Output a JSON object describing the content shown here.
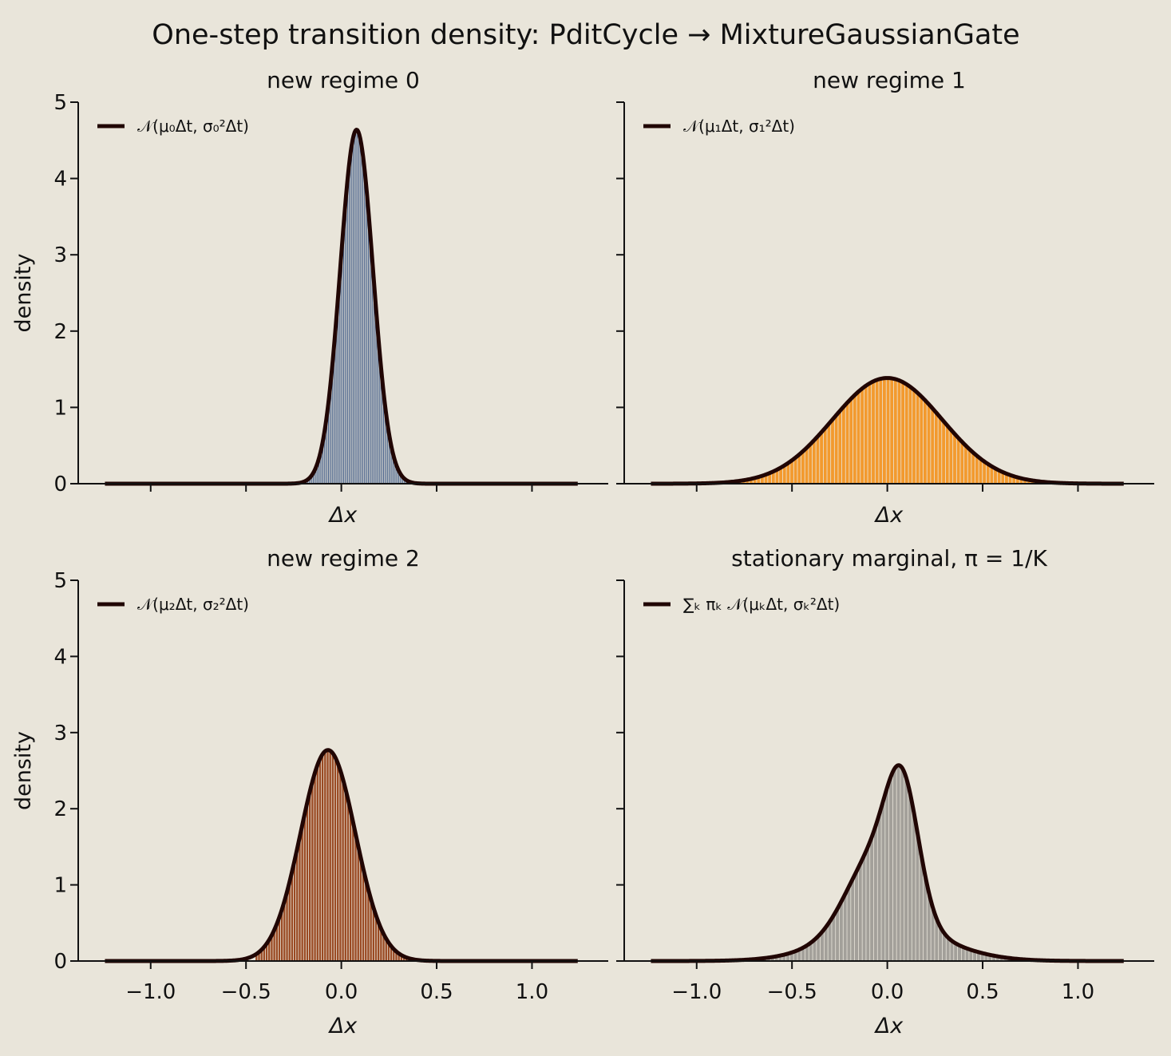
{
  "figure": {
    "title": "One-step transition density:  PditCycle → MixtureGaussianGate"
  },
  "chart_data": [
    {
      "type": "bar",
      "subtitle": "new regime 0",
      "xlabel": "Δx",
      "ylabel": "density",
      "xlim": [
        -1.38,
        1.4
      ],
      "ylim": [
        0,
        5
      ],
      "xticks": [
        "−1.0",
        "−0.5",
        "0.0",
        "0.5",
        "1.0"
      ],
      "xtick_values": [
        -1.0,
        -0.5,
        0.0,
        0.5,
        1.0
      ],
      "show_xtick_labels": false,
      "yticks": [
        "0",
        "1",
        "2",
        "3",
        "4",
        "5"
      ],
      "ytick_values": [
        0,
        1,
        2,
        3,
        4,
        5
      ],
      "show_ytick_labels": true,
      "grid": false,
      "legend_position": "top-left",
      "legend": "𝒩(μ₀Δt, σ₀²Δt)",
      "hist_color": "#3f5a86",
      "components": [
        {
          "weight": 1.0,
          "mean": 0.08,
          "sd": 0.086
        }
      ],
      "hist_range": [
        -0.25,
        0.4
      ],
      "hist_bins": 90,
      "curve_range": [
        -1.24,
        1.24
      ]
    },
    {
      "type": "bar",
      "subtitle": "new regime 1",
      "xlabel": "Δx",
      "ylabel": "",
      "xlim": [
        -1.38,
        1.4
      ],
      "ylim": [
        0,
        5
      ],
      "xticks": [
        "−1.0",
        "−0.5",
        "0.0",
        "0.5",
        "1.0"
      ],
      "xtick_values": [
        -1.0,
        -0.5,
        0.0,
        0.5,
        1.0
      ],
      "show_xtick_labels": false,
      "yticks": [
        "0",
        "1",
        "2",
        "3",
        "4",
        "5"
      ],
      "ytick_values": [
        0,
        1,
        2,
        3,
        4,
        5
      ],
      "show_ytick_labels": false,
      "grid": false,
      "legend_position": "top-left",
      "legend": "𝒩(μ₁Δt, σ₁²Δt)",
      "hist_color": "#f39a2e",
      "components": [
        {
          "weight": 1.0,
          "mean": 0.0,
          "sd": 0.288
        }
      ],
      "hist_range": [
        -0.8,
        0.85
      ],
      "hist_bins": 85,
      "curve_range": [
        -1.24,
        1.24
      ]
    },
    {
      "type": "bar",
      "subtitle": "new regime 2",
      "xlabel": "Δx",
      "ylabel": "density",
      "xlim": [
        -1.38,
        1.4
      ],
      "ylim": [
        0,
        5
      ],
      "xticks": [
        "−1.0",
        "−0.5",
        "0.0",
        "0.5",
        "1.0"
      ],
      "xtick_values": [
        -1.0,
        -0.5,
        0.0,
        0.5,
        1.0
      ],
      "show_xtick_labels": true,
      "yticks": [
        "0",
        "1",
        "2",
        "3",
        "4",
        "5"
      ],
      "ytick_values": [
        0,
        1,
        2,
        3,
        4,
        5
      ],
      "show_ytick_labels": true,
      "grid": false,
      "legend_position": "top-left",
      "legend": "𝒩(μ₂Δt, σ₂²Δt)",
      "hist_color": "#9a4a23",
      "components": [
        {
          "weight": 1.0,
          "mean": -0.07,
          "sd": 0.144
        }
      ],
      "hist_range": [
        -0.45,
        0.35
      ],
      "hist_bins": 60,
      "curve_range": [
        -1.24,
        1.24
      ]
    },
    {
      "type": "bar",
      "subtitle": "stationary marginal, π = 1/K",
      "xlabel": "Δx",
      "ylabel": "",
      "xlim": [
        -1.38,
        1.4
      ],
      "ylim": [
        0,
        5
      ],
      "xticks": [
        "−1.0",
        "−0.5",
        "0.0",
        "0.5",
        "1.0"
      ],
      "xtick_values": [
        -1.0,
        -0.5,
        0.0,
        0.5,
        1.0
      ],
      "show_xtick_labels": true,
      "yticks": [
        "0",
        "1",
        "2",
        "3",
        "4",
        "5"
      ],
      "ytick_values": [
        0,
        1,
        2,
        3,
        4,
        5
      ],
      "show_ytick_labels": false,
      "grid": false,
      "legend_position": "top-left",
      "legend": "∑ₖ πₖ 𝒩(μₖΔt, σₖ²Δt)",
      "hist_color": "#a3a09a",
      "components": [
        {
          "weight": 0.3333,
          "mean": 0.08,
          "sd": 0.086
        },
        {
          "weight": 0.3333,
          "mean": 0.0,
          "sd": 0.288
        },
        {
          "weight": 0.3333,
          "mean": -0.07,
          "sd": 0.144
        }
      ],
      "hist_range": [
        -0.85,
        0.85
      ],
      "hist_bins": 85,
      "curve_range": [
        -1.24,
        1.24
      ]
    }
  ]
}
